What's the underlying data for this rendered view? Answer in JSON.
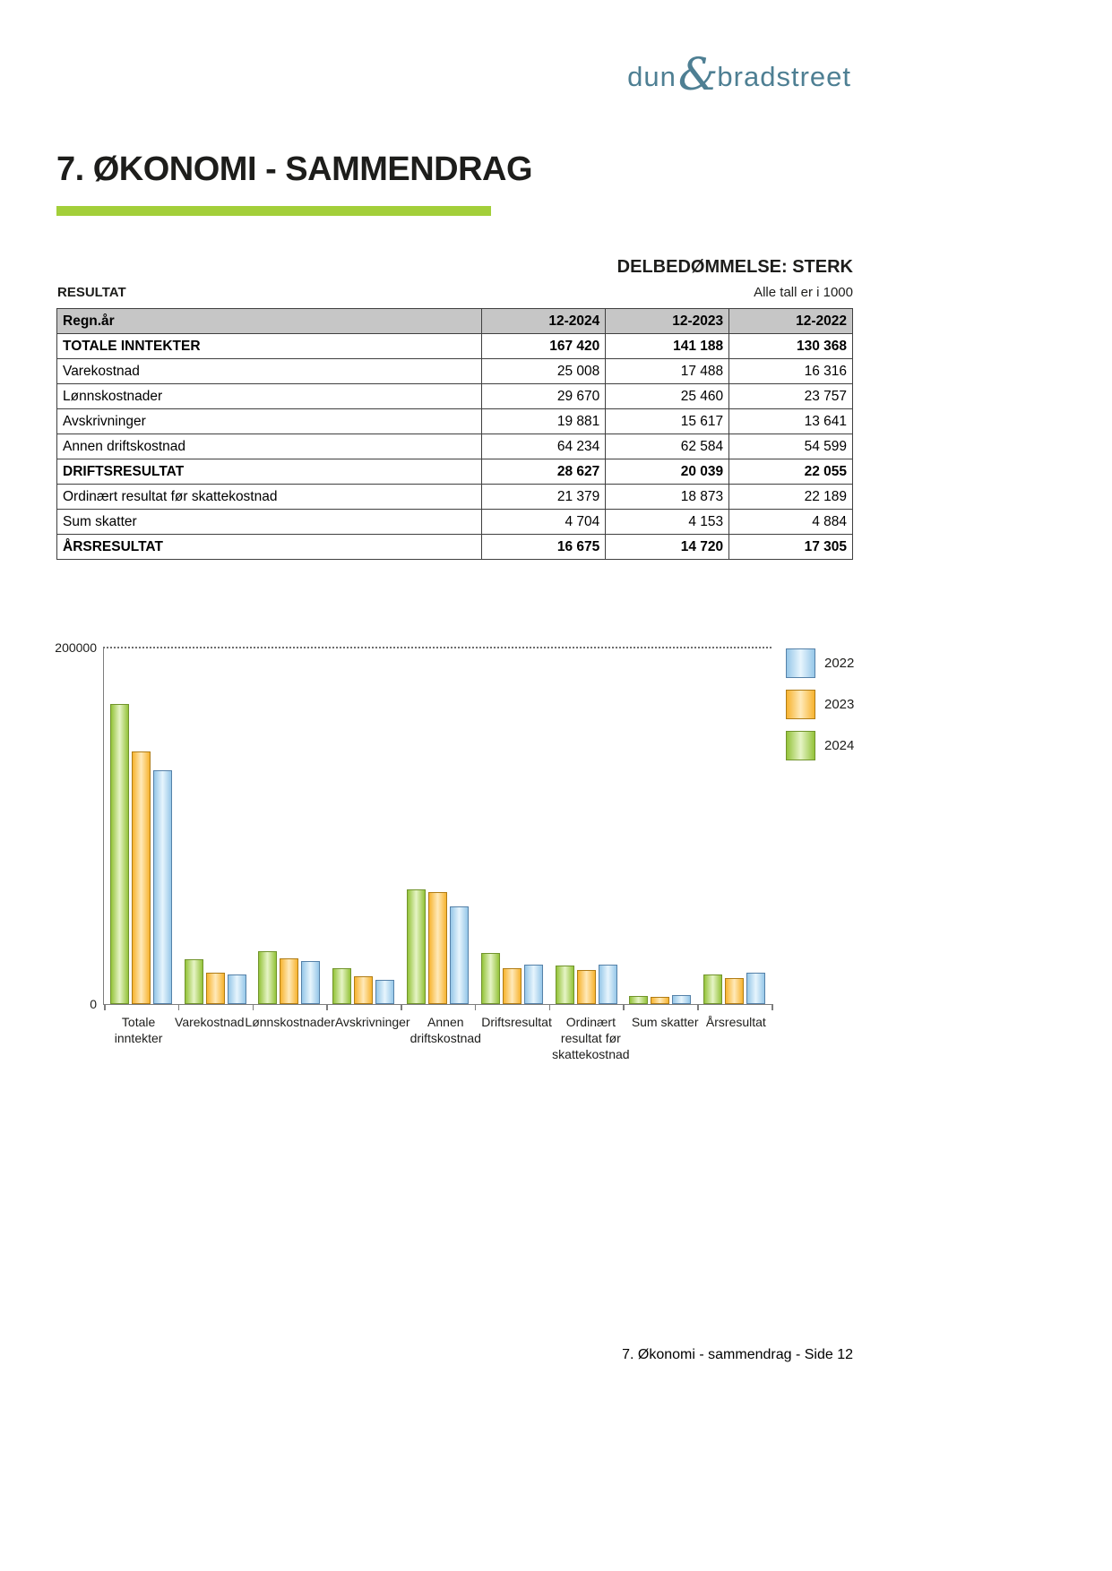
{
  "logo": {
    "part1": "dun",
    "amp": "&",
    "part2": "bradstreet",
    "color": "#4e7f93"
  },
  "title": "7. ØKONOMI - SAMMENDRAG",
  "accent_color": "#a3cf3a",
  "assessment": "DELBEDØMMELSE: STERK",
  "section_label": "RESULTAT",
  "units_note": "Alle tall er i 1000",
  "table": {
    "header": [
      "Regn.år",
      "12-2024",
      "12-2023",
      "12-2022"
    ],
    "rows": [
      {
        "label": "TOTALE INNTEKTER",
        "bold": true,
        "values": [
          "167 420",
          "141 188",
          "130 368"
        ]
      },
      {
        "label": "Varekostnad",
        "bold": false,
        "values": [
          "25 008",
          "17 488",
          "16 316"
        ]
      },
      {
        "label": "Lønnskostnader",
        "bold": false,
        "values": [
          "29 670",
          "25 460",
          "23 757"
        ]
      },
      {
        "label": "Avskrivninger",
        "bold": false,
        "values": [
          "19 881",
          "15 617",
          "13 641"
        ]
      },
      {
        "label": "Annen driftskostnad",
        "bold": false,
        "values": [
          "64 234",
          "62 584",
          "54 599"
        ]
      },
      {
        "label": "DRIFTSRESULTAT",
        "bold": true,
        "values": [
          "28 627",
          "20 039",
          "22 055"
        ]
      },
      {
        "label": "Ordinært resultat før skattekostnad",
        "bold": false,
        "values": [
          "21 379",
          "18 873",
          "22 189"
        ]
      },
      {
        "label": "Sum skatter",
        "bold": false,
        "values": [
          "4 704",
          "4 153",
          "4 884"
        ]
      },
      {
        "label": "ÅRSRESULTAT",
        "bold": true,
        "values": [
          "16 675",
          "14 720",
          "17 305"
        ]
      }
    ]
  },
  "chart_data": {
    "type": "bar",
    "title": "",
    "xlabel": "",
    "ylabel": "",
    "ylim": [
      0,
      200000
    ],
    "yticks": [
      "0",
      "200000"
    ],
    "grid": "dotted-top-line-only",
    "legend_position": "right",
    "categories": [
      "Totale inntekter",
      "Varekostnad",
      "Lønnskostnader",
      "Avskrivninger",
      "Annen driftskostnad",
      "Driftsresultat",
      "Ordinært resultat før skattekostnad",
      "Sum skatter",
      "Årsresultat"
    ],
    "category_labels": [
      "Totale\ninntekter",
      "Varekostnad",
      "Lønnskostnader",
      "Avskrivninger",
      "Annen\ndriftskostnad",
      "Driftsresultat",
      "Ordinært\nresultat før\nskattekostnad",
      "Sum skatter",
      "Årsresultat"
    ],
    "series": [
      {
        "name": "2024",
        "color": "#94c33a",
        "values": [
          167420,
          25008,
          29670,
          19881,
          64234,
          28627,
          21379,
          4704,
          16675
        ]
      },
      {
        "name": "2023",
        "color": "#f7b32f",
        "values": [
          141188,
          17488,
          25460,
          15617,
          62584,
          20039,
          18873,
          4153,
          14720
        ]
      },
      {
        "name": "2022",
        "color": "#96c7e8",
        "values": [
          130368,
          16316,
          23757,
          13641,
          54599,
          22055,
          22189,
          4884,
          17305
        ]
      }
    ],
    "legend_order": [
      "2022",
      "2023",
      "2024"
    ]
  },
  "footer": "7. Økonomi - sammendrag - Side 12"
}
